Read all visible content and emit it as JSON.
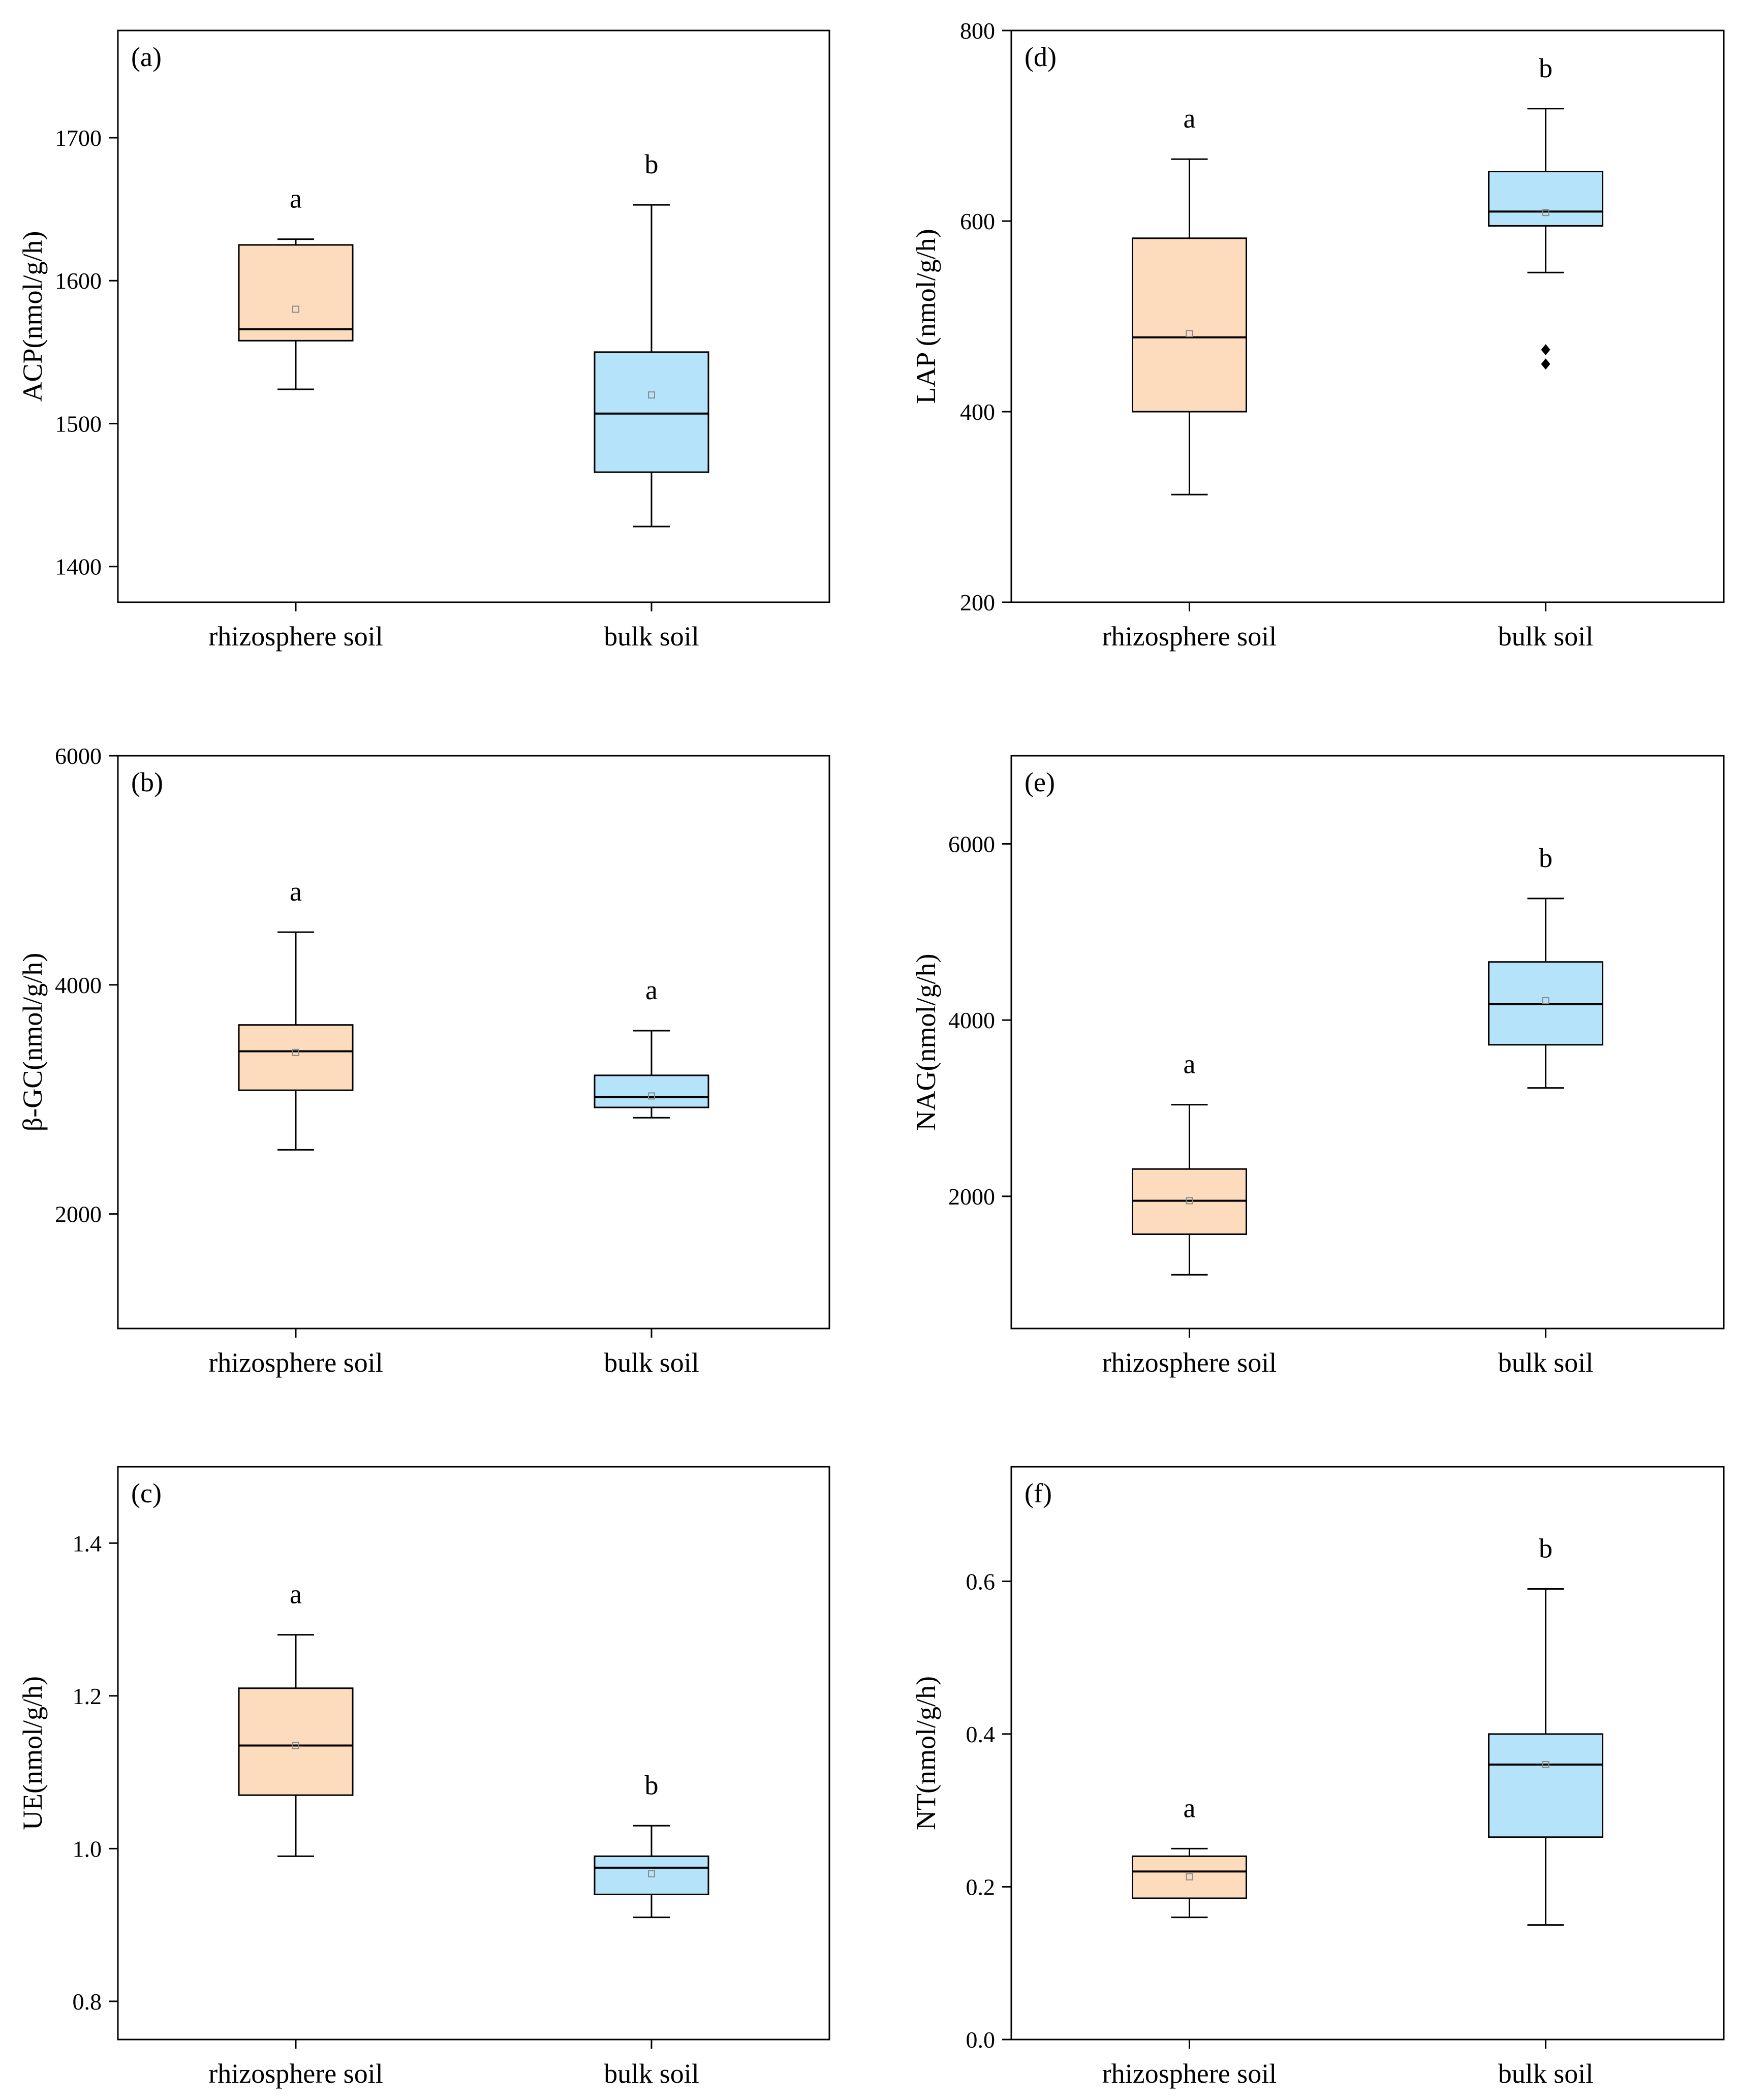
{
  "figure": {
    "colors": {
      "rhizosphere": "#FDDCBD",
      "bulk": "#B5E3FA",
      "stroke": "#000000",
      "mean_marker": "#8a8a8a"
    }
  },
  "chart_data": [
    {
      "type": "box",
      "panel_label": "(a)",
      "ylabel": "ACP(nmol/g/h)",
      "ylim": [
        1375,
        1775
      ],
      "yticks": [
        1400,
        1500,
        1600,
        1700
      ],
      "ytick_labels": [
        "1400",
        "1500",
        "1600",
        "1700"
      ],
      "categories": [
        "rhizosphere soil",
        "bulk soil"
      ],
      "boxes": [
        {
          "name": "rhizosphere soil",
          "color": "#FDDCBD",
          "whisker_low": 1524,
          "q1": 1558,
          "median": 1566,
          "q3": 1625,
          "whisker_high": 1629,
          "mean": 1580,
          "outliers": [],
          "sig_letter": "a"
        },
        {
          "name": "bulk soil",
          "color": "#B5E3FA",
          "whisker_low": 1428,
          "q1": 1466,
          "median": 1507,
          "q3": 1550,
          "whisker_high": 1653,
          "mean": 1520,
          "outliers": [],
          "sig_letter": "b"
        }
      ]
    },
    {
      "type": "box",
      "panel_label": "(b)",
      "ylabel": "β-GC(nmol/g/h)",
      "ylim": [
        1000,
        6000
      ],
      "yticks": [
        2000,
        4000,
        6000
      ],
      "ytick_labels": [
        "2000",
        "4000",
        "6000"
      ],
      "categories": [
        "rhizosphere soil",
        "bulk soil"
      ],
      "boxes": [
        {
          "name": "rhizosphere soil",
          "color": "#FDDCBD",
          "whisker_low": 2560,
          "q1": 3080,
          "median": 3420,
          "q3": 3650,
          "whisker_high": 4460,
          "mean": 3410,
          "outliers": [],
          "sig_letter": "a"
        },
        {
          "name": "bulk soil",
          "color": "#B5E3FA",
          "whisker_low": 2840,
          "q1": 2930,
          "median": 3020,
          "q3": 3210,
          "whisker_high": 3600,
          "mean": 3030,
          "outliers": [],
          "sig_letter": "a"
        }
      ]
    },
    {
      "type": "box",
      "panel_label": "(c)",
      "ylabel": "UE(nmol/g/h)",
      "ylim": [
        0.75,
        1.5
      ],
      "yticks": [
        0.8,
        1.0,
        1.2,
        1.4
      ],
      "ytick_labels": [
        "0.8",
        "1.0",
        "1.2",
        "1.4"
      ],
      "categories": [
        "rhizosphere soil",
        "bulk soil"
      ],
      "boxes": [
        {
          "name": "rhizosphere soil",
          "color": "#FDDCBD",
          "whisker_low": 0.99,
          "q1": 1.07,
          "median": 1.135,
          "q3": 1.21,
          "whisker_high": 1.28,
          "mean": 1.135,
          "outliers": [],
          "sig_letter": "a"
        },
        {
          "name": "bulk soil",
          "color": "#B5E3FA",
          "whisker_low": 0.91,
          "q1": 0.94,
          "median": 0.975,
          "q3": 0.99,
          "whisker_high": 1.03,
          "mean": 0.967,
          "outliers": [],
          "sig_letter": "b"
        }
      ]
    },
    {
      "type": "box",
      "panel_label": "(d)",
      "ylabel": "LAP (nmol/g/h)",
      "ylim": [
        200,
        800
      ],
      "yticks": [
        200,
        400,
        600,
        800
      ],
      "ytick_labels": [
        "200",
        "400",
        "600",
        "800"
      ],
      "categories": [
        "rhizosphere soil",
        "bulk soil"
      ],
      "boxes": [
        {
          "name": "rhizosphere soil",
          "color": "#FDDCBD",
          "whisker_low": 313,
          "q1": 400,
          "median": 478,
          "q3": 582,
          "whisker_high": 665,
          "mean": 482,
          "outliers": [],
          "sig_letter": "a"
        },
        {
          "name": "bulk soil",
          "color": "#B5E3FA",
          "whisker_low": 546,
          "q1": 595,
          "median": 610,
          "q3": 652,
          "whisker_high": 718,
          "mean": 609,
          "outliers": [
            465,
            450
          ],
          "sig_letter": "b"
        }
      ]
    },
    {
      "type": "box",
      "panel_label": "(e)",
      "ylabel": "NAG(nmol/g/h)",
      "ylim": [
        500,
        7000
      ],
      "yticks": [
        2000,
        4000,
        6000
      ],
      "ytick_labels": [
        "2000",
        "4000",
        "6000"
      ],
      "categories": [
        "rhizosphere soil",
        "bulk soil"
      ],
      "boxes": [
        {
          "name": "rhizosphere soil",
          "color": "#FDDCBD",
          "whisker_low": 1110,
          "q1": 1570,
          "median": 1950,
          "q3": 2310,
          "whisker_high": 3040,
          "mean": 1950,
          "outliers": [],
          "sig_letter": "a"
        },
        {
          "name": "bulk soil",
          "color": "#B5E3FA",
          "whisker_low": 3230,
          "q1": 3720,
          "median": 4180,
          "q3": 4660,
          "whisker_high": 5380,
          "mean": 4220,
          "outliers": [],
          "sig_letter": "b"
        }
      ]
    },
    {
      "type": "box",
      "panel_label": "(f)",
      "ylabel": "NT(nmol/g/h)",
      "ylim": [
        0.0,
        0.75
      ],
      "yticks": [
        0.0,
        0.2,
        0.4,
        0.6
      ],
      "ytick_labels": [
        "0.0",
        "0.2",
        "0.4",
        "0.6"
      ],
      "categories": [
        "rhizosphere soil",
        "bulk soil"
      ],
      "boxes": [
        {
          "name": "rhizosphere soil",
          "color": "#FDDCBD",
          "whisker_low": 0.16,
          "q1": 0.185,
          "median": 0.22,
          "q3": 0.24,
          "whisker_high": 0.25,
          "mean": 0.213,
          "outliers": [],
          "sig_letter": "a"
        },
        {
          "name": "bulk soil",
          "color": "#B5E3FA",
          "whisker_low": 0.15,
          "q1": 0.265,
          "median": 0.36,
          "q3": 0.4,
          "whisker_high": 0.59,
          "mean": 0.36,
          "outliers": [],
          "sig_letter": "b"
        }
      ]
    }
  ]
}
